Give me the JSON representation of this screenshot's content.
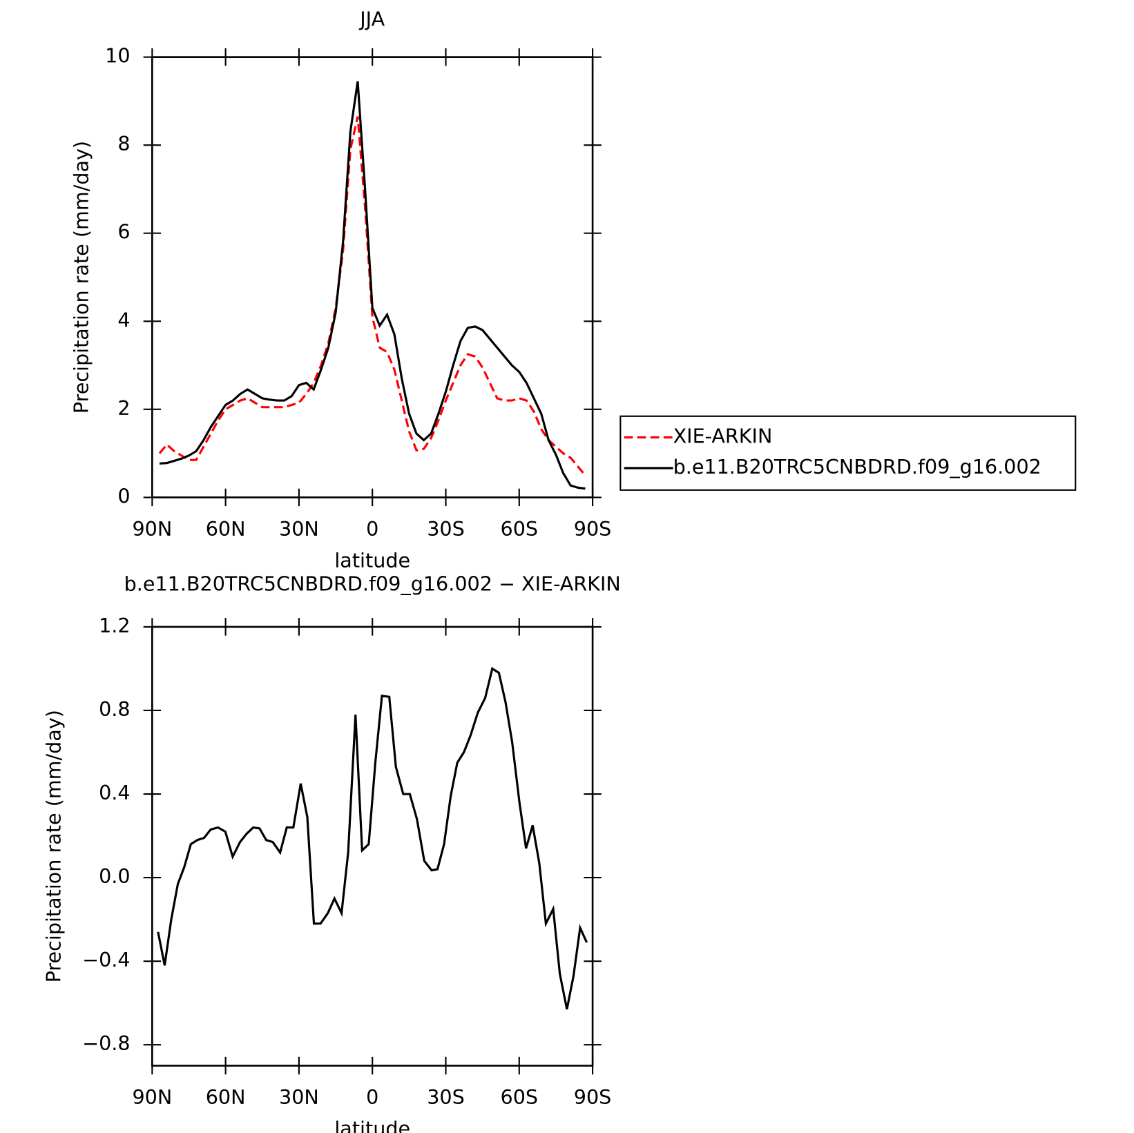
{
  "chart_data": [
    {
      "type": "line",
      "title": "JJA",
      "xlabel": "latitude",
      "ylabel": "Precipitation rate (mm/day)",
      "x": [
        87,
        84,
        81,
        78,
        75,
        72,
        69,
        66,
        63,
        60,
        57,
        54,
        51,
        48,
        45,
        42,
        39,
        36,
        33,
        30,
        27,
        24,
        21,
        18,
        15,
        12,
        9,
        6,
        3,
        0,
        -3,
        -6,
        -9,
        -12,
        -15,
        -18,
        -21,
        -24,
        -27,
        -30,
        -33,
        -36,
        -39,
        -42,
        -45,
        -48,
        -51,
        -54,
        -57,
        -60,
        -63,
        -66,
        -69,
        -72,
        -75,
        -78,
        -81,
        -84,
        -87
      ],
      "xlim": [
        90,
        -90
      ],
      "xticks": [
        {
          "value": 90,
          "label": "90N"
        },
        {
          "value": 60,
          "label": "60N"
        },
        {
          "value": 30,
          "label": "30N"
        },
        0,
        {
          "value": -30,
          "label": "30S"
        },
        {
          "value": -60,
          "label": "60S"
        },
        {
          "value": -90,
          "label": "90S"
        }
      ],
      "ylim": [
        0,
        10
      ],
      "yticks": [
        0,
        2,
        4,
        6,
        8,
        10
      ],
      "legend": "right",
      "series": [
        {
          "name": "XIE-ARKIN",
          "color": "#ff0000",
          "dash": "dashed",
          "values": [
            1.0,
            1.2,
            1.05,
            0.95,
            0.85,
            0.85,
            1.15,
            1.45,
            1.75,
            2.0,
            2.1,
            2.2,
            2.25,
            2.15,
            2.05,
            2.05,
            2.05,
            2.05,
            2.1,
            2.15,
            2.35,
            2.6,
            3.0,
            3.5,
            4.3,
            5.6,
            7.9,
            8.65,
            6.6,
            4.1,
            3.4,
            3.3,
            2.9,
            2.2,
            1.5,
            1.07,
            1.1,
            1.35,
            1.75,
            2.2,
            2.6,
            3.0,
            3.25,
            3.2,
            2.95,
            2.6,
            2.25,
            2.2,
            2.2,
            2.25,
            2.2,
            1.95,
            1.55,
            1.3,
            1.15,
            1.0,
            0.9,
            0.7,
            0.5
          ]
        },
        {
          "name": "b.e11.B20TRC5CNBDRD.f09_g16.002",
          "color": "#000000",
          "dash": "solid",
          "values": [
            0.77,
            0.78,
            0.83,
            0.88,
            0.95,
            1.05,
            1.3,
            1.6,
            1.85,
            2.1,
            2.2,
            2.35,
            2.45,
            2.35,
            2.25,
            2.22,
            2.2,
            2.2,
            2.3,
            2.55,
            2.6,
            2.45,
            2.9,
            3.4,
            4.2,
            5.8,
            8.3,
            9.45,
            7.0,
            4.3,
            3.9,
            4.15,
            3.7,
            2.7,
            1.9,
            1.45,
            1.3,
            1.45,
            1.9,
            2.4,
            3.0,
            3.55,
            3.85,
            3.88,
            3.8,
            3.6,
            3.4,
            3.2,
            3.0,
            2.85,
            2.6,
            2.25,
            1.9,
            1.3,
            0.97,
            0.55,
            0.27,
            0.22,
            0.2
          ]
        }
      ]
    },
    {
      "type": "line",
      "title": "b.e11.B20TRC5CNBDRD.f09_g16.002 − XIE-ARKIN",
      "xlabel": "latitude",
      "ylabel": "Precipitation rate (mm/day)",
      "x": [
        87.6,
        84.9,
        82.2,
        79.5,
        76.9,
        74.2,
        71.5,
        68.8,
        66.1,
        63.1,
        60.1,
        57.1,
        54.1,
        51.4,
        48.7,
        46.1,
        43.4,
        40.7,
        37.7,
        35.0,
        32.3,
        29.3,
        26.6,
        23.9,
        21.2,
        18.2,
        15.5,
        12.6,
        9.9,
        6.9,
        4.2,
        1.5,
        -1.2,
        -3.9,
        -6.9,
        -9.6,
        -12.6,
        -15.3,
        -18.2,
        -21.2,
        -24.2,
        -26.6,
        -29.3,
        -32.0,
        -34.7,
        -37.4,
        -40.1,
        -43.1,
        -46.1,
        -49.0,
        -51.7,
        -54.4,
        -57.1,
        -60.1,
        -62.8,
        -65.5,
        -68.2,
        -70.9,
        -73.9,
        -76.6,
        -79.5,
        -82.2,
        -84.9,
        -87.6
      ],
      "xlim": [
        90,
        -90
      ],
      "xticks": [
        {
          "value": 90,
          "label": "90N"
        },
        {
          "value": 60,
          "label": "60N"
        },
        {
          "value": 30,
          "label": "30N"
        },
        0,
        {
          "value": -30,
          "label": "30S"
        },
        {
          "value": -60,
          "label": "60S"
        },
        {
          "value": -90,
          "label": "90S"
        }
      ],
      "ylim": [
        -0.9,
        1.2
      ],
      "yticks": [
        {
          "value": -0.8,
          "label": "−0.8"
        },
        {
          "value": -0.4,
          "label": "−0.4"
        },
        {
          "value": 0,
          "label": "0.0"
        },
        0.4,
        0.8,
        1.2
      ],
      "series": [
        {
          "color": "#000000",
          "dash": "solid",
          "values": [
            -0.26,
            -0.42,
            -0.2,
            -0.03,
            0.05,
            0.16,
            0.18,
            0.19,
            0.23,
            0.24,
            0.22,
            0.1,
            0.17,
            0.21,
            0.24,
            0.235,
            0.18,
            0.17,
            0.12,
            0.24,
            0.24,
            0.45,
            0.29,
            -0.22,
            -0.22,
            -0.17,
            -0.1,
            -0.17,
            0.12,
            0.78,
            0.13,
            0.16,
            0.55,
            0.87,
            0.865,
            0.53,
            0.4,
            0.4,
            0.28,
            0.08,
            0.035,
            0.04,
            0.16,
            0.39,
            0.55,
            0.6,
            0.68,
            0.79,
            0.86,
            1.0,
            0.98,
            0.84,
            0.65,
            0.36,
            0.14,
            0.25,
            0.07,
            -0.22,
            -0.15,
            -0.46,
            -0.63,
            -0.47,
            -0.24,
            -0.31
          ]
        }
      ]
    }
  ]
}
